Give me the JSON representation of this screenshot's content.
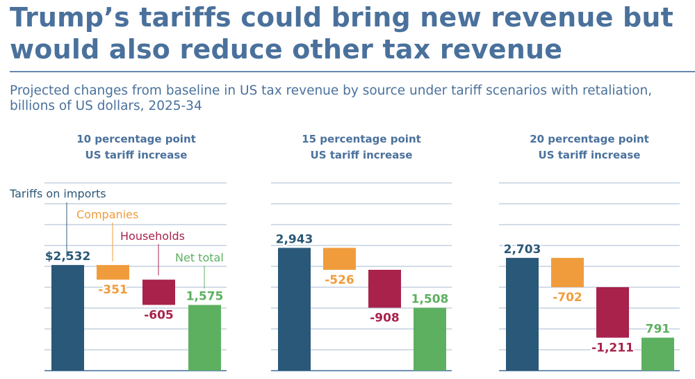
{
  "header": {
    "title": "Trump’s tariffs could bring new revenue but would also reduce other tax revenue",
    "subtitle": "Projected changes from baseline in US tax revenue by source under tariff scenarios with retaliation, billions of US dollars, 2025-34"
  },
  "colors": {
    "title": "#4a719c",
    "tariffs": "#2a5878",
    "companies": "#f09c3c",
    "households": "#a8224c",
    "net": "#5db060",
    "grid": "#b8c7d9"
  },
  "chart_data": {
    "type": "bar",
    "subtype": "waterfall",
    "title": "Projected changes from baseline in US tax revenue by source under tariff scenarios with retaliation, billions of US dollars, 2025-34",
    "categories": [
      "Tariffs on imports",
      "Companies",
      "Households",
      "Net total"
    ],
    "ylim": [
      0,
      4500
    ],
    "grid_step": 500,
    "grid": true,
    "panels": [
      {
        "title_line1": "10 percentage point",
        "title_line2": "US tariff increase",
        "values": [
          2532,
          -351,
          -605,
          1575
        ],
        "labels": [
          "$2,532",
          "-351",
          "-605",
          "1,575"
        ],
        "show_category_labels": true
      },
      {
        "title_line1": "15 percentage point",
        "title_line2": "US tariff increase",
        "values": [
          2943,
          -526,
          -908,
          1508
        ],
        "labels": [
          "2,943",
          "-526",
          "-908",
          "1,508"
        ],
        "show_category_labels": false
      },
      {
        "title_line1": "20 percentage point",
        "title_line2": "US tariff increase",
        "values": [
          2703,
          -702,
          -1211,
          791
        ],
        "labels": [
          "2,703",
          "-702",
          "-1,211",
          "791"
        ],
        "show_category_labels": false
      }
    ]
  }
}
